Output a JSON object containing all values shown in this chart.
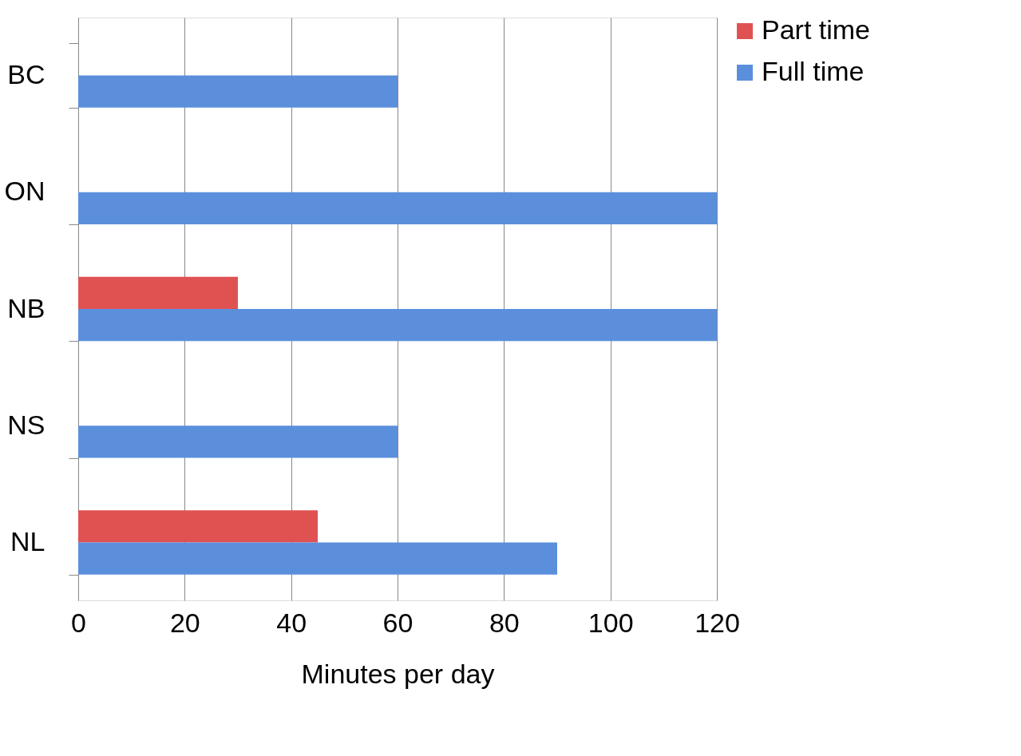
{
  "chart_data": {
    "type": "bar",
    "orientation": "horizontal",
    "xlabel": "Minutes per day",
    "categories": [
      "BC",
      "ON",
      "NB",
      "NS",
      "NL"
    ],
    "series": [
      {
        "name": "Part time",
        "color": "#e05252",
        "values": [
          null,
          null,
          30,
          null,
          45
        ]
      },
      {
        "name": "Full time",
        "color": "#5b8fdc",
        "values": [
          60,
          120,
          120,
          60,
          90
        ]
      }
    ],
    "xlim": [
      0,
      120
    ],
    "xticks": [
      0,
      20,
      40,
      60,
      80,
      100,
      120
    ],
    "grid": "x",
    "legend": "right"
  }
}
